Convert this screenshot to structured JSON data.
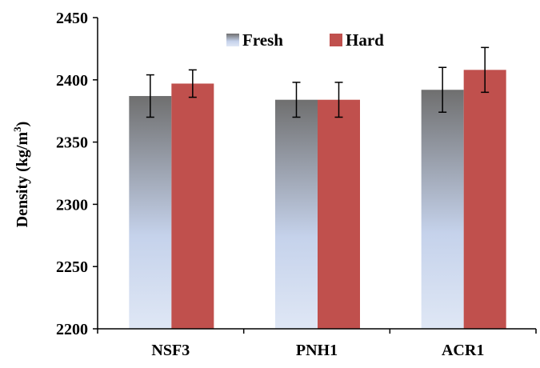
{
  "chart_data": {
    "type": "bar",
    "title": "",
    "xlabel": "",
    "ylabel": "Density (kg/m",
    "ylabel_superscript": "3",
    "ylabel_suffix": ")",
    "categories": [
      "NSF3",
      "PNH1",
      "ACR1"
    ],
    "ylim": [
      2200,
      2450
    ],
    "yticks": [
      2200,
      2250,
      2300,
      2350,
      2400,
      2450
    ],
    "grid": false,
    "legend_position": "top-center",
    "series": [
      {
        "name": "Fresh",
        "values": [
          2387,
          2384,
          2392
        ],
        "error": [
          17,
          14,
          18
        ],
        "fill": "gradient",
        "colors": {
          "top": "#6f6f6f",
          "middle": "#c5d2eb",
          "bottom": "#dfe7f5"
        }
      },
      {
        "name": "Hard",
        "values": [
          2397,
          2384,
          2408
        ],
        "error": [
          11,
          14,
          18
        ],
        "fill": "solid",
        "colors": {
          "solid": "#c0504d"
        }
      }
    ]
  }
}
